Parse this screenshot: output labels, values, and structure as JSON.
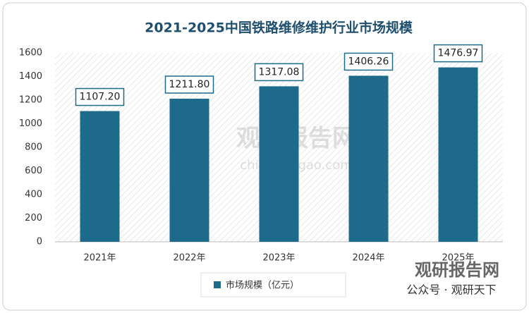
{
  "chart_data": {
    "type": "bar",
    "title": "2021-2025中国铁路维修维护行业市场规模",
    "categories": [
      "2021年",
      "2022年",
      "2023年",
      "2024年",
      "2025年"
    ],
    "series": [
      {
        "name": "市场规模（亿元）",
        "color": "#1d6a8a",
        "values": [
          1107.2,
          1211.8,
          1317.08,
          1406.26,
          1476.97
        ],
        "value_labels": [
          "1107.20",
          "1211.80",
          "1317.08",
          "1406.26",
          "1476.97"
        ]
      }
    ],
    "ylim": [
      0,
      1600
    ],
    "yticks": [
      0,
      200,
      400,
      600,
      800,
      1000,
      1200,
      1400,
      1600
    ],
    "grid": false,
    "legend": "bottom",
    "watermarks": [
      "观研报告网",
      "chinabaogao.com",
      "观研报告网",
      "公众号 · 观研天下"
    ]
  }
}
